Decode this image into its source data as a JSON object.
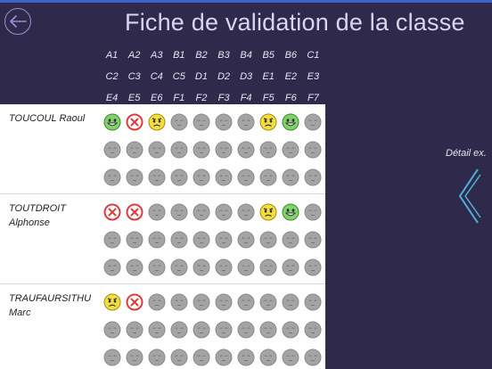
{
  "title": "Fiche de validation de la classe",
  "header_rows": [
    [
      "A1",
      "A2",
      "A3",
      "B1",
      "B2",
      "B3",
      "B4",
      "B5",
      "B6",
      "C1"
    ],
    [
      "C2",
      "C3",
      "C4",
      "C5",
      "D1",
      "D2",
      "D3",
      "E1",
      "E2",
      "E3"
    ],
    [
      "E4",
      "E5",
      "E6",
      "F1",
      "F2",
      "F3",
      "F4",
      "F5",
      "F6",
      "F7"
    ]
  ],
  "students": [
    {
      "name_line1": "TOUCOUL Raoul",
      "name_line2": "",
      "status_rows": [
        [
          "happy",
          "fail",
          "worried",
          "none",
          "none",
          "none",
          "none",
          "worried",
          "happy",
          "none"
        ],
        [
          "none",
          "none",
          "none",
          "none",
          "none",
          "none",
          "none",
          "none",
          "none",
          "none"
        ],
        [
          "none",
          "none",
          "none",
          "none",
          "none",
          "none",
          "none",
          "none",
          "none",
          "none"
        ]
      ]
    },
    {
      "name_line1": "TOUTDROIT",
      "name_line2": "Alphonse",
      "status_rows": [
        [
          "fail",
          "fail",
          "none",
          "none",
          "none",
          "none",
          "none",
          "worried",
          "happy",
          "none"
        ],
        [
          "none",
          "none",
          "none",
          "none",
          "none",
          "none",
          "none",
          "none",
          "none",
          "none"
        ],
        [
          "none",
          "none",
          "none",
          "none",
          "none",
          "none",
          "none",
          "none",
          "none",
          "none"
        ]
      ]
    },
    {
      "name_line1": "TRAUFAURSITHU",
      "name_line2": "Marc",
      "status_rows": [
        [
          "worried",
          "fail",
          "none",
          "none",
          "none",
          "none",
          "none",
          "none",
          "none",
          "none"
        ],
        [
          "none",
          "none",
          "none",
          "none",
          "none",
          "none",
          "none",
          "none",
          "none",
          "none"
        ],
        [
          "none",
          "none",
          "none",
          "none",
          "none",
          "none",
          "none",
          "none",
          "none",
          "none"
        ]
      ]
    }
  ],
  "detail_label": "Détail ex.",
  "icons": {
    "back": "back-arrow-icon",
    "detail": "chevron-left-icon"
  },
  "colors": {
    "background": "#2f2a4c",
    "accent_bar": "#3a63c9",
    "happy": "#7fd36a",
    "worried": "#f2de3c",
    "fail": "#e03b3b",
    "none": "#a4a4a4"
  }
}
